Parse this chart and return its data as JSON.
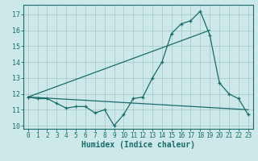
{
  "xlabel": "Humidex (Indice chaleur)",
  "bg_color": "#cce8e8",
  "grid_color": "#aacccc",
  "line_color": "#1a6b6b",
  "xlim": [
    -0.5,
    23.5
  ],
  "ylim": [
    9.8,
    17.6
  ],
  "yticks": [
    10,
    11,
    12,
    13,
    14,
    15,
    16,
    17
  ],
  "xticks": [
    0,
    1,
    2,
    3,
    4,
    5,
    6,
    7,
    8,
    9,
    10,
    11,
    12,
    13,
    14,
    15,
    16,
    17,
    18,
    19,
    20,
    21,
    22,
    23
  ],
  "curve1_x": [
    0,
    1,
    2,
    3,
    4,
    5,
    6,
    7,
    8,
    9,
    10,
    11,
    12,
    13,
    14,
    15,
    16,
    17,
    18,
    19,
    20,
    21,
    22,
    23
  ],
  "curve1_y": [
    11.8,
    11.7,
    11.7,
    11.4,
    11.1,
    11.2,
    11.2,
    10.8,
    11.0,
    10.0,
    10.7,
    11.7,
    11.8,
    13.0,
    14.0,
    15.8,
    16.4,
    16.6,
    17.2,
    15.7,
    12.7,
    12.0,
    11.7,
    10.7
  ],
  "curve2_x": [
    0,
    23
  ],
  "curve2_y": [
    11.8,
    11.0
  ],
  "curve3_x": [
    0,
    19
  ],
  "curve3_y": [
    11.8,
    16.0
  ]
}
